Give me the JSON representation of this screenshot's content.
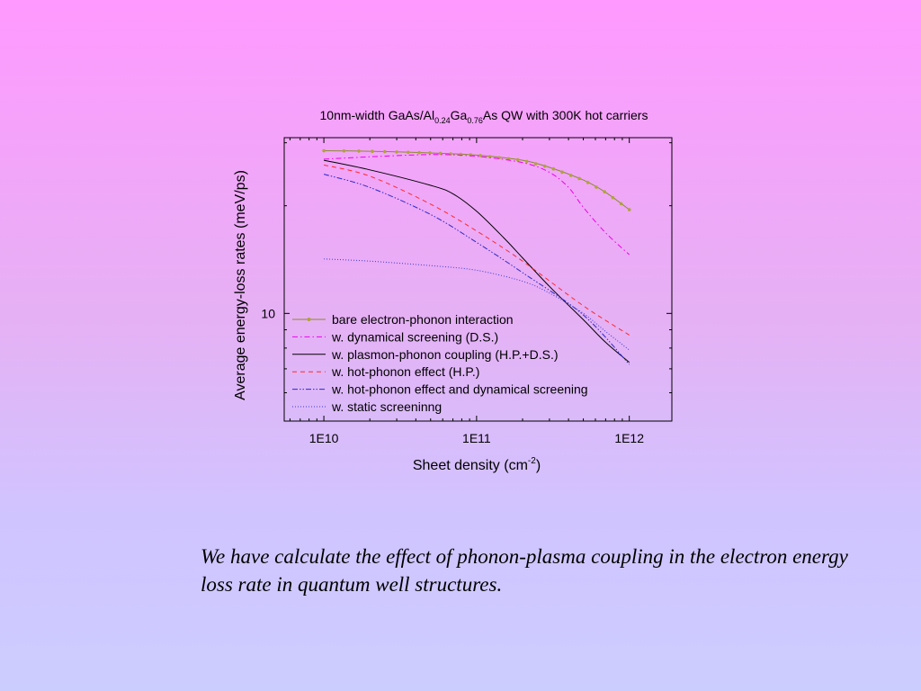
{
  "colors": {
    "bg_top": "#ff99ff",
    "bg_bottom": "#cccdff",
    "bare": "#8a8a2e",
    "bare_marker": "#b0a33a",
    "dynamical": "#ee00ee",
    "plasmon": "#000000",
    "hot_phonon": "#ff2a2a",
    "hot_phonon_ds": "#2a2acc",
    "static": "#3a3ad8"
  },
  "chart_data": {
    "type": "line",
    "title": {
      "prefix": "10nm-width GaAs/Al",
      "sub1": "0.24",
      "mid": "Ga",
      "sub2": "0.76",
      "suffix": "As QW with 300K hot carriers"
    },
    "xlabel": {
      "base": "Sheet density (cm",
      "sup": "-2",
      "close": ")"
    },
    "ylabel": "Average energy-loss rates (meV/ps)",
    "x_scale": "log",
    "y_scale": "log",
    "xlim": [
      5500000000,
      1900000000000.0
    ],
    "ylim": [
      5,
      31
    ],
    "x_ticks": [
      {
        "value": 10000000000,
        "label": "1E10"
      },
      {
        "value": 100000000000,
        "label": "1E11"
      },
      {
        "value": 1000000000000,
        "label": "1E12"
      }
    ],
    "y_ticks": [
      {
        "value": 10,
        "label": "10"
      }
    ],
    "grid": false,
    "legend_position": "bottom-left",
    "series": [
      {
        "name": "bare electron-phonon interaction",
        "style": "line-dots",
        "x": [
          10000000000.0,
          20000000000.0,
          50000000000.0,
          100000000000.0,
          200000000000.0,
          300000000000.0,
          500000000000.0,
          700000000000.0,
          1000000000000.0
        ],
        "y": [
          28.5,
          28.4,
          28.1,
          27.7,
          26.8,
          25.6,
          23.6,
          21.8,
          19.5
        ]
      },
      {
        "name": "w. dynamical screening (D.S.)",
        "style": "dashdot",
        "x": [
          10000000000.0,
          20000000000.0,
          50000000000.0,
          100000000000.0,
          200000000000.0,
          300000000000.0,
          400000000000.0,
          500000000000.0,
          700000000000.0,
          1000000000000.0
        ],
        "y": [
          27.0,
          27.4,
          27.8,
          27.5,
          26.4,
          24.8,
          22.5,
          19.8,
          16.8,
          14.6
        ]
      },
      {
        "name": "w. plasmon-phonon coupling (H.P.+D.S.)",
        "style": "solid",
        "x": [
          10000000000.0,
          20000000000.0,
          50000000000.0,
          70000000000.0,
          100000000000.0,
          150000000000.0,
          200000000000.0,
          300000000000.0,
          500000000000.0,
          700000000000.0,
          1000000000000.0
        ],
        "y": [
          26.8,
          25.2,
          22.8,
          21.6,
          19.3,
          16.3,
          14.3,
          11.9,
          9.6,
          8.3,
          7.3
        ]
      },
      {
        "name": "w. hot-phonon effect (H.P.)",
        "style": "dashed",
        "x": [
          10000000000.0,
          20000000000.0,
          50000000000.0,
          100000000000.0,
          200000000000.0,
          500000000000.0,
          1000000000000.0
        ],
        "y": [
          26.0,
          24.2,
          20.2,
          17.0,
          14.0,
          10.5,
          8.7
        ]
      },
      {
        "name": "w. hot-phonon effect and dynamical screening",
        "style": "dashdotdot",
        "x": [
          10000000000.0,
          20000000000.0,
          50000000000.0,
          100000000000.0,
          200000000000.0,
          500000000000.0,
          1000000000000.0
        ],
        "y": [
          24.5,
          22.5,
          18.9,
          15.8,
          13.0,
          9.9,
          7.2
        ]
      },
      {
        "name": "w. static screeninng",
        "style": "dotted",
        "x": [
          10000000000.0,
          20000000000.0,
          50000000000.0,
          100000000000.0,
          200000000000.0,
          300000000000.0,
          500000000000.0,
          700000000000.0,
          1000000000000.0
        ],
        "y": [
          14.2,
          14.0,
          13.6,
          13.2,
          12.3,
          11.4,
          10.0,
          8.9,
          7.9
        ]
      }
    ]
  },
  "caption": "We have calculate the effect of phonon-plasma coupling in the electron energy loss rate in quantum well structures."
}
